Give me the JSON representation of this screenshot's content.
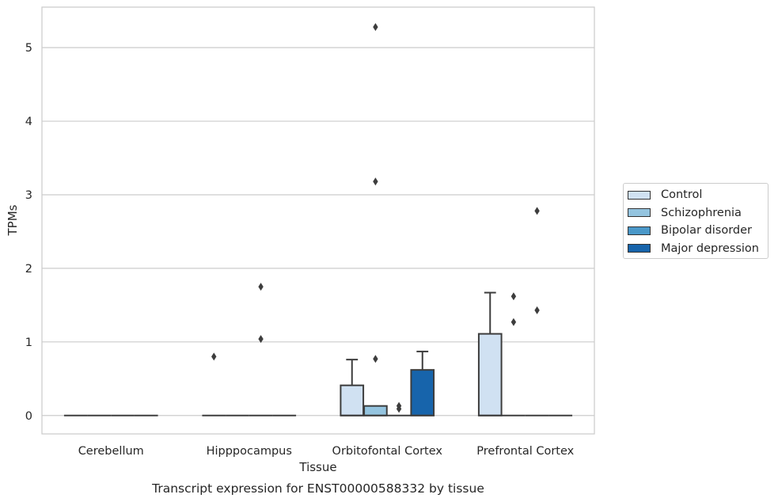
{
  "chart_data": {
    "type": "box",
    "title": "Transcript expression for ENST00000588332 by tissue",
    "xlabel": "Tissue",
    "ylabel": "TPMs",
    "ylim": [
      -0.25,
      5.55
    ],
    "yticks": [
      0,
      1,
      2,
      3,
      4,
      5
    ],
    "categories": [
      "Cerebellum",
      "Hipppocampus",
      "Orbitofontal Cortex",
      "Prefrontal Cortex"
    ],
    "grid": "horizontal",
    "legend_position": "right",
    "series": [
      {
        "name": "Control",
        "color": "#d0e1f2",
        "boxes": [
          {
            "q1": 0,
            "median": 0,
            "q3": 0,
            "whisker_low": 0,
            "whisker_high": 0,
            "outliers": []
          },
          {
            "q1": 0,
            "median": 0,
            "q3": 0,
            "whisker_low": 0,
            "whisker_high": 0,
            "outliers": [
              0.8
            ]
          },
          {
            "q1": 0,
            "median": 0,
            "q3": 0.41,
            "whisker_low": 0,
            "whisker_high": 0.76,
            "outliers": []
          },
          {
            "q1": 0,
            "median": 0,
            "q3": 1.11,
            "whisker_low": 0,
            "whisker_high": 1.67,
            "outliers": []
          }
        ]
      },
      {
        "name": "Schizophrenia",
        "color": "#94c4df",
        "boxes": [
          {
            "q1": 0,
            "median": 0,
            "q3": 0,
            "whisker_low": 0,
            "whisker_high": 0,
            "outliers": []
          },
          {
            "q1": 0,
            "median": 0,
            "q3": 0,
            "whisker_low": 0,
            "whisker_high": 0,
            "outliers": []
          },
          {
            "q1": 0,
            "median": 0,
            "q3": 0.13,
            "whisker_low": 0,
            "whisker_high": 0.13,
            "outliers": [
              0.77,
              5.28,
              3.18
            ]
          },
          {
            "q1": 0,
            "median": 0,
            "q3": 0,
            "whisker_low": 0,
            "whisker_high": 0,
            "outliers": [
              1.62,
              1.27
            ]
          }
        ]
      },
      {
        "name": "Bipolar disorder",
        "color": "#4a98c9",
        "boxes": [
          {
            "q1": 0,
            "median": 0,
            "q3": 0,
            "whisker_low": 0,
            "whisker_high": 0,
            "outliers": []
          },
          {
            "q1": 0,
            "median": 0,
            "q3": 0,
            "whisker_low": 0,
            "whisker_high": 0,
            "outliers": [
              1.75,
              1.04
            ]
          },
          {
            "q1": 0,
            "median": 0,
            "q3": 0,
            "whisker_low": 0,
            "whisker_high": 0,
            "outliers": [
              0.13,
              0.09
            ]
          },
          {
            "q1": 0,
            "median": 0,
            "q3": 0,
            "whisker_low": 0,
            "whisker_high": 0,
            "outliers": [
              2.78,
              1.43
            ]
          }
        ]
      },
      {
        "name": "Major depression",
        "color": "#1764ab",
        "boxes": [
          {
            "q1": 0,
            "median": 0,
            "q3": 0,
            "whisker_low": 0,
            "whisker_high": 0,
            "outliers": []
          },
          {
            "q1": 0,
            "median": 0,
            "q3": 0,
            "whisker_low": 0,
            "whisker_high": 0,
            "outliers": []
          },
          {
            "q1": 0,
            "median": 0,
            "q3": 0.62,
            "whisker_low": 0,
            "whisker_high": 0.87,
            "outliers": []
          },
          {
            "q1": 0,
            "median": 0,
            "q3": 0,
            "whisker_low": 0,
            "whisker_high": 0,
            "outliers": []
          }
        ]
      }
    ]
  }
}
